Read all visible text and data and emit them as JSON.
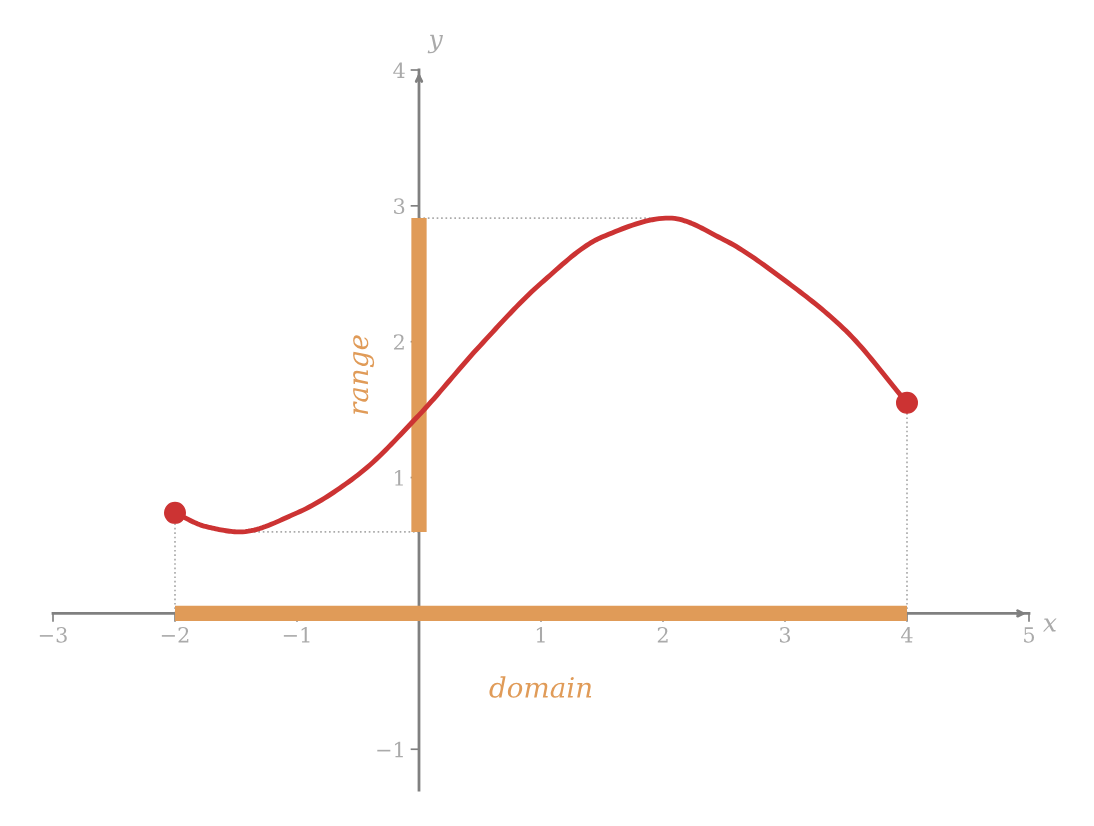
{
  "chart_data": {
    "type": "line",
    "xlabel": "x",
    "ylabel": "y",
    "x": [
      -2,
      -1.75,
      -1.47,
      -1,
      -0.5,
      0,
      0.5,
      1,
      1.5,
      2.05,
      2.5,
      3,
      3.5,
      4
    ],
    "series": [
      {
        "color": "#cc3333",
        "values": [
          0.74,
          0.64,
          0.6,
          0.74,
          1.02,
          1.46,
          1.97,
          2.43,
          2.77,
          2.91,
          2.75,
          2.45,
          2.08,
          1.55
        ]
      },
      {
        "type": "scatter",
        "color": "#cc3333",
        "x": [
          -2,
          4
        ],
        "values": [
          0.74,
          1.55
        ],
        "marker": "circle"
      },
      {
        "name": "range",
        "color": "#e09b58",
        "x": [
          0,
          0
        ],
        "values": [
          0.6,
          2.91
        ]
      },
      {
        "name": "domain",
        "color": "#e09b58",
        "x": [
          -2,
          4
        ],
        "values": [
          0,
          0
        ]
      }
    ],
    "xlim": [
      -3,
      5
    ],
    "ylim": [
      -1.3,
      4
    ],
    "xticks": [
      -3,
      -2,
      -1,
      1,
      2,
      3,
      4,
      5
    ],
    "yticks": [
      -1,
      1,
      2,
      3,
      4
    ],
    "grid": false,
    "marker": "none",
    "line_style": "solid",
    "ref_lines": [
      {
        "axis": "y",
        "value": 2.91,
        "color": "#aaaaaa",
        "line_style": "dotted"
      },
      {
        "axis": "y",
        "value": 0.6,
        "color": "#aaaaaa",
        "line_style": "dotted"
      },
      {
        "axis": "x",
        "value": -2,
        "color": "#aaaaaa",
        "line_style": "dotted"
      },
      {
        "axis": "x",
        "value": 4,
        "color": "#aaaaaa",
        "line_style": "dotted"
      }
    ]
  }
}
